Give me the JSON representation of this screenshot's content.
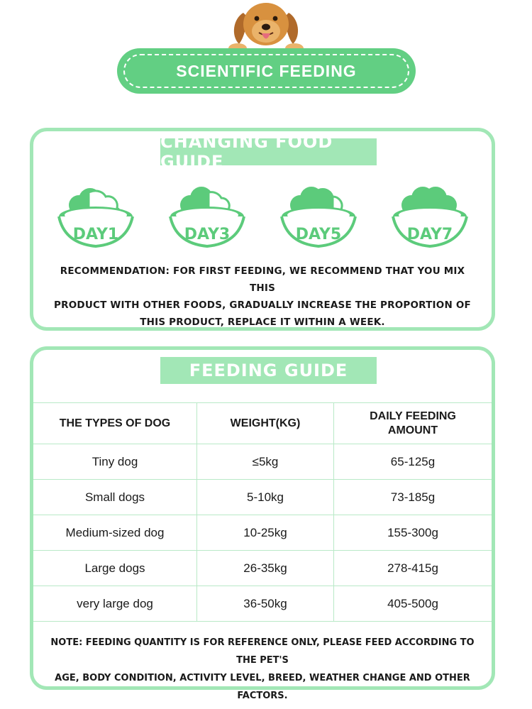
{
  "header": {
    "title": "SCIENTIFIC FEEDING"
  },
  "changing_food_guide": {
    "title": "CHANGING FOOD GUIDE",
    "steps": [
      "DAY1",
      "DAY3",
      "DAY5",
      "DAY7"
    ],
    "recommendation_lines": [
      "RECOMMENDATION: FOR FIRST FEEDING, WE RECOMMEND THAT YOU MIX THIS",
      "PRODUCT WITH OTHER FOODS, GRADUALLY INCREASE THE PROPORTION OF",
      "THIS PRODUCT, REPLACE IT WITHIN A WEEK."
    ]
  },
  "feeding_guide": {
    "title": "FEEDING GUIDE",
    "headers": [
      "THE TYPES OF DOG",
      "WEIGHT(KG)",
      "DAILY FEEDING AMOUNT"
    ],
    "rows": [
      [
        "Tiny dog",
        "≤5kg",
        "65-125g"
      ],
      [
        "Small dogs",
        "5-10kg",
        "73-185g"
      ],
      [
        "Medium-sized dog",
        "10-25kg",
        "155-300g"
      ],
      [
        "Large dogs",
        "26-35kg",
        "278-415g"
      ],
      [
        "very large dog",
        "36-50kg",
        "405-500g"
      ]
    ],
    "note_lines": [
      "NOTE: FEEDING QUANTITY IS FOR REFERENCE ONLY, PLEASE FEED ACCORDING TO THE PET'S",
      "AGE, BODY CONDITION, ACTIVITY LEVEL, BREED, WEATHER CHANGE AND OTHER FACTORS."
    ]
  },
  "colors": {
    "accent": "#62cf83",
    "accent_light": "#a2e7b6",
    "bowl_green": "#5ccb7b",
    "text": "#1a1a1a"
  },
  "icons": [
    "dog-illustration",
    "food-bowl-icon"
  ]
}
